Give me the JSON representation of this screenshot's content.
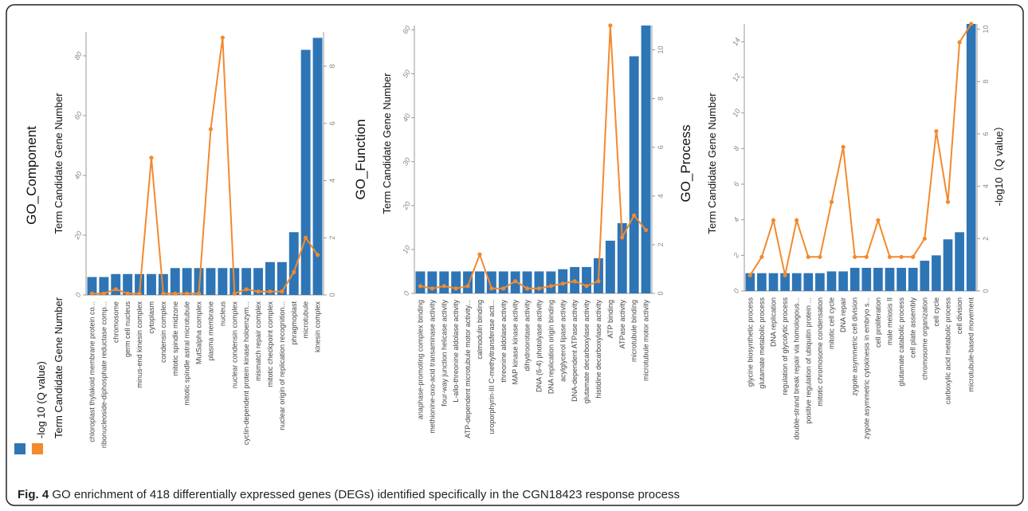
{
  "caption": {
    "label": "Fig. 4",
    "text": "GO enrichment of 418 differentially expressed genes (DEGs) identified specifically in the CGN18423 response process"
  },
  "legend": {
    "items": [
      {
        "label": "-log 10 (Q value)",
        "color": "#2e75b6"
      },
      {
        "label": "Term Candidate Gene Number",
        "color": "#f28a2e"
      }
    ]
  },
  "colors": {
    "bar": "#2e75b6",
    "line": "#f28a2e"
  },
  "chart_data": [
    {
      "type": "bar+line",
      "title": "GO_Component",
      "ylabel": "Term Candidate Gene Number",
      "y2label": "",
      "ylim": [
        0,
        88
      ],
      "yticks": [
        0,
        20,
        40,
        60,
        80
      ],
      "y2lim": [
        0,
        9.2
      ],
      "y2ticks": [
        0,
        2,
        4,
        6,
        8
      ],
      "categories": [
        "chloroplast thylakoid membrane protein co...",
        "ribonucleoside-diphosphate reductase comp...",
        "chromosome",
        "germ cell nucleus",
        "minus-end kinesin complex",
        "cytoplasm",
        "condensin complex",
        "mitotic spindle midzone",
        "mitotic spindle astral microtubule",
        "MutSalpha complex",
        "plasma membrane",
        "nucleus",
        "nuclear condensin complex",
        "cyclin-dependent protein kinase holoenzym...",
        "mismatch repair complex",
        "mitotic checkpoint complex",
        "nuclear origin of replication recognition...",
        "phragmoplast",
        "microtubule",
        "kinesin complex"
      ],
      "bar_values": [
        6,
        6,
        7,
        7,
        7,
        7,
        7,
        9,
        9,
        9,
        9,
        9,
        9,
        9,
        9,
        11,
        11,
        21,
        82,
        86
      ],
      "line_values": [
        0.05,
        0.05,
        0.2,
        0.05,
        0.05,
        4.8,
        0.05,
        0.05,
        0.05,
        0.05,
        5.8,
        9.0,
        0.05,
        0.2,
        0.12,
        0.12,
        0.12,
        0.8,
        2.0,
        1.4
      ]
    },
    {
      "type": "bar+line",
      "title": "GO_Function",
      "ylabel": "Term Candidate Gene Number",
      "y2label": "",
      "ylim": [
        0,
        61
      ],
      "yticks": [
        0,
        10,
        20,
        30,
        40,
        50,
        60
      ],
      "y2lim": [
        0,
        11
      ],
      "y2ticks": [
        0,
        2,
        4,
        6,
        8,
        10
      ],
      "categories": [
        "anaphase-promoting complex binding",
        "methionine-oxo-acid transaminase activity",
        "four-way junction helicase activity",
        "L-allo-threonine aldolase activity",
        "ATP-dependent microtubule motor activity...",
        "calmodulin binding",
        "uroporphyrin-III C-methyltransferase acti...",
        "threonine aldolase activity",
        "MAP kinase kinase activity",
        "dihydroorotase activity",
        "DNA (6-4) photolyase activity",
        "DNA replication origin binding",
        "acylglycerol lipase activity",
        "DNA-dependent ATPase activity",
        "glutamate decarboxylase activity",
        "histidine decarboxylase activity",
        "ATP binding",
        "ATPase activity",
        "microtubule binding",
        "microtubule motor activity"
      ],
      "bar_values": [
        5,
        5,
        5,
        5,
        5,
        5,
        5,
        5,
        5,
        5,
        5,
        5,
        5.5,
        6,
        6,
        8,
        12,
        16,
        54,
        61
      ],
      "line_values": [
        0.3,
        0.2,
        0.3,
        0.2,
        0.3,
        1.6,
        0.2,
        0.2,
        0.5,
        0.2,
        0.2,
        0.3,
        0.4,
        0.5,
        0.3,
        0.5,
        11.0,
        2.3,
        3.2,
        2.6
      ]
    },
    {
      "type": "bar+line",
      "title": "GO_Process",
      "ylabel": "Term Candidate Gene Number",
      "y2label": "-log10（Q value）",
      "ylim": [
        0,
        15
      ],
      "yticks": [
        0,
        2,
        4,
        6,
        8,
        10,
        12,
        14
      ],
      "y2lim": [
        0,
        10.2
      ],
      "y2ticks": [
        0,
        2,
        4,
        6,
        8,
        10
      ],
      "categories": [
        "glycine biosynthetic process",
        "glutamate metabolic process",
        "DNA replication",
        "regulation of glycolytic process",
        "double-strand break repair via homologous...",
        "positive regulation of ubiquitin protein ...",
        "mitotic chromosome condensation",
        "mitotic cell cycle",
        "DNA repair",
        "zygote asymmetric cell division",
        "zygote asymmetric cytokinesis in embryo s...",
        "cell proliferation",
        "male meiosis II",
        "glutamate catabolic process",
        "cell plate assembly",
        "chromosome organization",
        "cell cycle",
        "carboxylic acid metabolic process",
        "cell division",
        "microtubule-based movement"
      ],
      "bar_values": [
        1,
        1,
        1,
        1,
        1,
        1,
        1,
        1.1,
        1.1,
        1.3,
        1.3,
        1.3,
        1.3,
        1.3,
        1.3,
        1.7,
        2.0,
        2.9,
        3.3,
        15
      ],
      "line_values": [
        0.6,
        1.3,
        2.7,
        0.6,
        2.7,
        1.3,
        1.3,
        3.4,
        5.5,
        1.3,
        1.3,
        2.7,
        1.3,
        1.3,
        1.3,
        2.0,
        6.1,
        3.4,
        9.5,
        10.2
      ]
    }
  ]
}
